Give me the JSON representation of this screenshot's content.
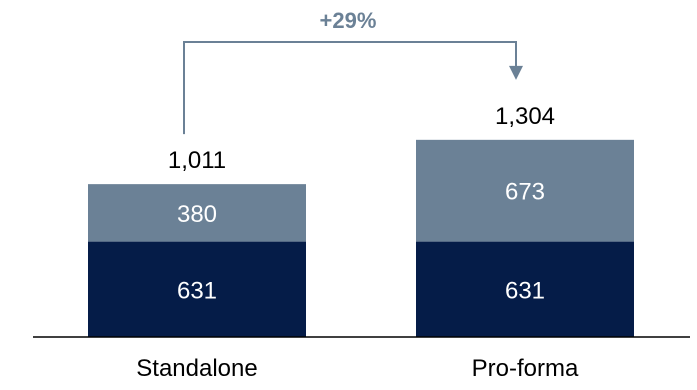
{
  "chart_data": {
    "type": "bar",
    "stacked": true,
    "categories": [
      "Standalone",
      "Pro-forma"
    ],
    "series": [
      {
        "values": [
          631,
          631
        ],
        "value_labels": [
          "631",
          "631"
        ],
        "color": "#051c48"
      },
      {
        "values": [
          380,
          673
        ],
        "value_labels": [
          "380",
          "673"
        ],
        "color": "#6b8196"
      }
    ],
    "totals": [
      1011,
      1304
    ],
    "total_labels": [
      "1,011",
      "1,304"
    ],
    "annotation": {
      "text": "+29%",
      "from": "Standalone",
      "to": "Pro-forma"
    },
    "ylim": [
      0,
      1350
    ],
    "grid": false,
    "legend": "none",
    "colors": {
      "connector": "#6b8196",
      "axis": "#000000",
      "label_on_bar": "#ffffff",
      "text": "#000000",
      "annotation_text": "#6b8196"
    }
  }
}
